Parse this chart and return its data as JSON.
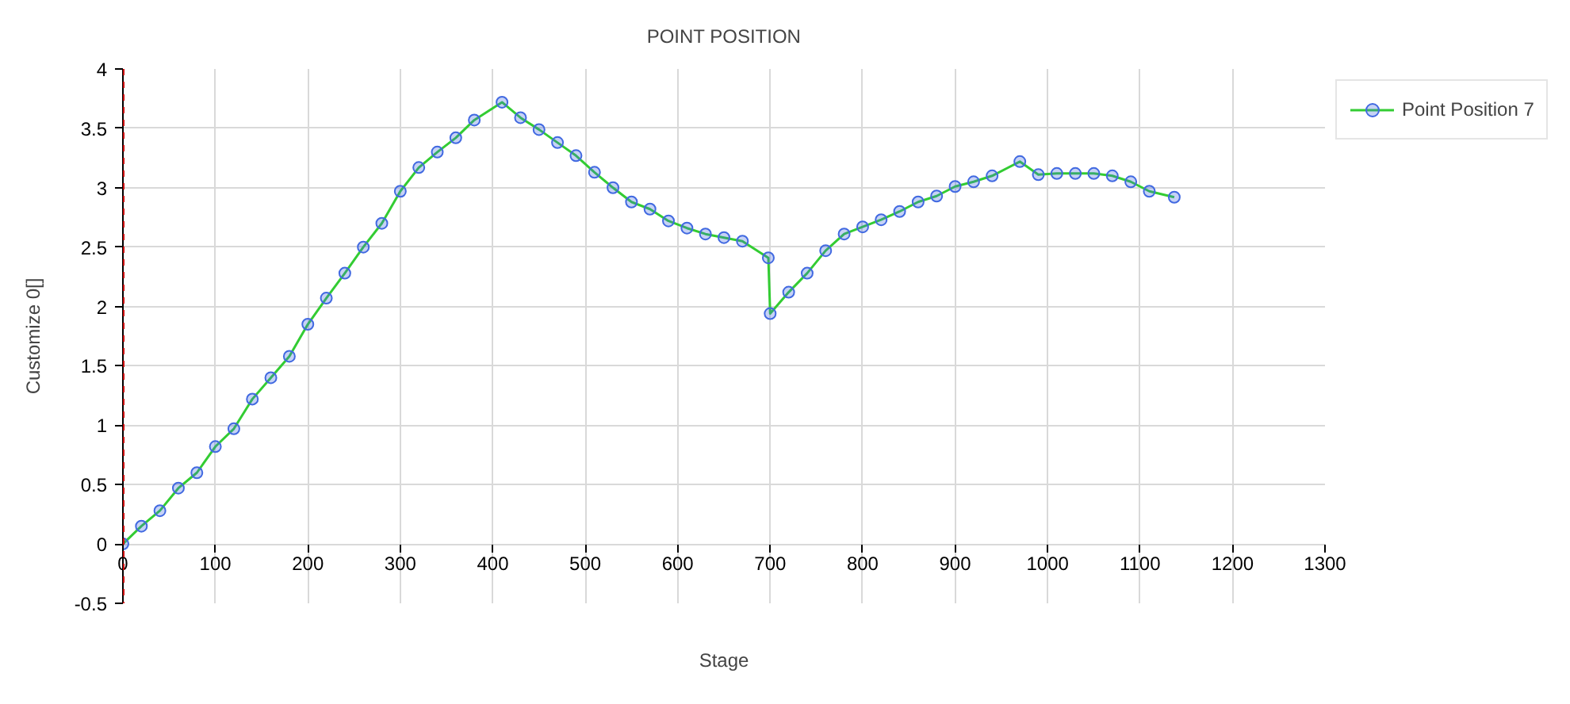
{
  "chart_data": {
    "type": "line",
    "title": "POINT POSITION",
    "xlabel": "Stage",
    "ylabel": "Customize 0[]",
    "x": [
      0,
      20,
      40,
      60,
      80,
      100,
      120,
      140,
      160,
      180,
      200,
      220,
      240,
      260,
      280,
      300,
      320,
      340,
      360,
      380,
      410,
      430,
      450,
      470,
      490,
      510,
      530,
      550,
      570,
      590,
      610,
      630,
      650,
      670,
      698,
      700,
      720,
      740,
      760,
      780,
      800,
      820,
      840,
      860,
      880,
      900,
      920,
      940,
      970,
      990,
      1010,
      1030,
      1050,
      1070,
      1090,
      1110,
      1137
    ],
    "series": [
      {
        "name": "Point Position 7",
        "color": "#4169e1",
        "values": [
          0.0,
          0.15,
          0.28,
          0.47,
          0.6,
          0.82,
          0.97,
          1.22,
          1.4,
          1.58,
          1.85,
          2.07,
          2.28,
          2.5,
          2.7,
          2.97,
          3.17,
          3.3,
          3.42,
          3.57,
          3.72,
          3.59,
          3.49,
          3.38,
          3.27,
          3.13,
          3.0,
          2.88,
          2.82,
          2.72,
          2.66,
          2.61,
          2.58,
          2.55,
          2.41,
          1.94,
          2.12,
          2.28,
          2.47,
          2.61,
          2.67,
          2.73,
          2.8,
          2.88,
          2.93,
          3.01,
          3.05,
          3.1,
          3.22,
          3.11,
          3.12,
          3.12,
          3.12,
          3.1,
          3.05,
          2.97,
          2.92
        ]
      }
    ],
    "xlim": [
      0,
      1300
    ],
    "xticks": [
      0,
      100,
      200,
      300,
      400,
      500,
      600,
      700,
      800,
      900,
      1000,
      1100,
      1200,
      1300
    ],
    "ylim": [
      -0.5,
      4
    ],
    "yticks": [
      -0.5,
      0,
      0.5,
      1,
      1.5,
      2,
      2.5,
      3,
      3.5,
      4
    ],
    "grid": true,
    "legend": "top right",
    "marker": "circle",
    "line_style": "solid",
    "ref_lines": [
      {
        "axis": "x",
        "value": 0,
        "color": "#cc0000",
        "line_style": "dashed"
      }
    ]
  }
}
